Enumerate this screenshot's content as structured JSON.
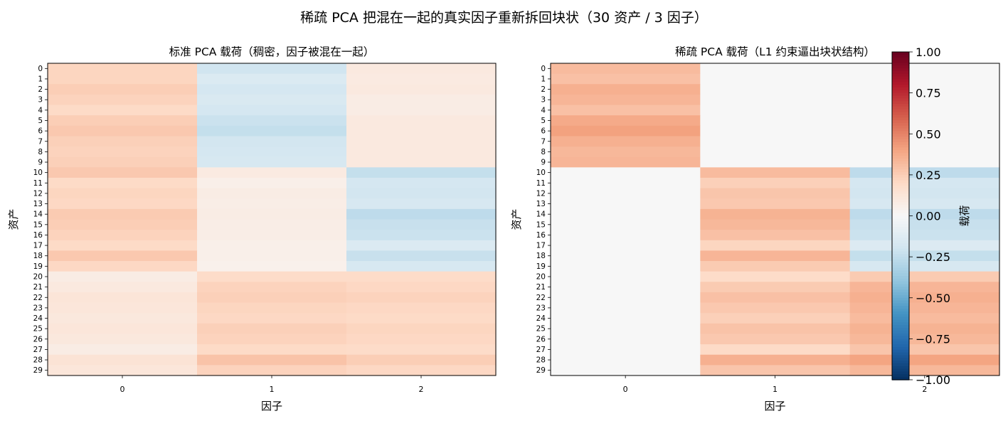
{
  "suptitle": "稀疏 PCA 把混在一起的真实因子重新拆回块状（30 资产 / 3 因子）",
  "colormap": {
    "name": "RdBu_r",
    "stops": [
      "#053061",
      "#2166ac",
      "#4393c3",
      "#92c5de",
      "#d1e5f0",
      "#f7f7f7",
      "#fddbc7",
      "#f4a582",
      "#d6604d",
      "#b2182b",
      "#67001f"
    ]
  },
  "chart_data": [
    {
      "type": "heatmap",
      "title": "标准 PCA 载荷（稠密，因子被混在一起）",
      "xlabel": "因子",
      "ylabel": "资产",
      "x_categories": [
        "0",
        "1",
        "2"
      ],
      "y_categories": [
        "0",
        "1",
        "2",
        "3",
        "4",
        "5",
        "6",
        "7",
        "8",
        "9",
        "10",
        "11",
        "12",
        "13",
        "14",
        "15",
        "16",
        "17",
        "18",
        "19",
        "20",
        "21",
        "22",
        "23",
        "24",
        "25",
        "26",
        "27",
        "28",
        "29"
      ],
      "vmin": -1,
      "vmax": 1,
      "values": [
        [
          0.22,
          -0.2,
          0.1
        ],
        [
          0.22,
          -0.15,
          0.09
        ],
        [
          0.25,
          -0.18,
          0.1
        ],
        [
          0.23,
          -0.16,
          0.08
        ],
        [
          0.2,
          -0.18,
          0.08
        ],
        [
          0.25,
          -0.22,
          0.1
        ],
        [
          0.27,
          -0.24,
          0.1
        ],
        [
          0.24,
          -0.19,
          0.1
        ],
        [
          0.23,
          -0.18,
          0.1
        ],
        [
          0.24,
          -0.17,
          0.1
        ],
        [
          0.27,
          0.09,
          -0.24
        ],
        [
          0.2,
          0.06,
          -0.18
        ],
        [
          0.22,
          0.08,
          -0.19
        ],
        [
          0.21,
          0.07,
          -0.17
        ],
        [
          0.26,
          0.08,
          -0.26
        ],
        [
          0.25,
          0.07,
          -0.23
        ],
        [
          0.23,
          0.07,
          -0.22
        ],
        [
          0.2,
          0.06,
          -0.15
        ],
        [
          0.27,
          0.06,
          -0.23
        ],
        [
          0.21,
          0.05,
          -0.17
        ],
        [
          0.08,
          0.19,
          0.19
        ],
        [
          0.1,
          0.23,
          0.21
        ],
        [
          0.13,
          0.24,
          0.23
        ],
        [
          0.12,
          0.22,
          0.21
        ],
        [
          0.11,
          0.21,
          0.2
        ],
        [
          0.12,
          0.24,
          0.22
        ],
        [
          0.11,
          0.23,
          0.21
        ],
        [
          0.08,
          0.2,
          0.19
        ],
        [
          0.14,
          0.29,
          0.25
        ],
        [
          0.12,
          0.23,
          0.21
        ]
      ]
    },
    {
      "type": "heatmap",
      "title": "稀疏 PCA 载荷（L1 约束逼出块状结构）",
      "xlabel": "因子",
      "ylabel": "资产",
      "x_categories": [
        "0",
        "1",
        "2"
      ],
      "y_categories": [
        "0",
        "1",
        "2",
        "3",
        "4",
        "5",
        "6",
        "7",
        "8",
        "9",
        "10",
        "11",
        "12",
        "13",
        "14",
        "15",
        "16",
        "17",
        "18",
        "19",
        "20",
        "21",
        "22",
        "23",
        "24",
        "25",
        "26",
        "27",
        "28",
        "29"
      ],
      "vmin": -1,
      "vmax": 1,
      "values": [
        [
          0.32,
          0.0,
          0.0
        ],
        [
          0.3,
          0.0,
          0.0
        ],
        [
          0.36,
          0.0,
          0.0
        ],
        [
          0.34,
          0.0,
          0.0
        ],
        [
          0.3,
          0.0,
          0.0
        ],
        [
          0.38,
          0.0,
          0.0
        ],
        [
          0.41,
          0.0,
          0.0
        ],
        [
          0.36,
          0.0,
          0.0
        ],
        [
          0.33,
          0.0,
          0.0
        ],
        [
          0.34,
          0.0,
          0.0
        ],
        [
          0.0,
          0.32,
          -0.26
        ],
        [
          0.0,
          0.24,
          -0.18
        ],
        [
          0.0,
          0.28,
          -0.19
        ],
        [
          0.0,
          0.27,
          -0.17
        ],
        [
          0.0,
          0.35,
          -0.26
        ],
        [
          0.0,
          0.33,
          -0.23
        ],
        [
          0.0,
          0.3,
          -0.22
        ],
        [
          0.0,
          0.22,
          -0.14
        ],
        [
          0.0,
          0.34,
          -0.24
        ],
        [
          0.0,
          0.26,
          -0.17
        ],
        [
          0.0,
          0.19,
          0.26
        ],
        [
          0.0,
          0.26,
          0.34
        ],
        [
          0.0,
          0.3,
          0.36
        ],
        [
          0.0,
          0.27,
          0.34
        ],
        [
          0.0,
          0.24,
          0.32
        ],
        [
          0.0,
          0.29,
          0.35
        ],
        [
          0.0,
          0.27,
          0.33
        ],
        [
          0.0,
          0.2,
          0.28
        ],
        [
          0.0,
          0.36,
          0.4
        ],
        [
          0.0,
          0.28,
          0.33
        ]
      ],
      "colorbar": {
        "label": "载荷",
        "ticks": [
          1.0,
          0.75,
          0.5,
          0.25,
          0.0,
          -0.25,
          -0.5,
          -0.75,
          -1.0
        ],
        "tick_labels": [
          "1.00",
          "0.75",
          "0.50",
          "0.25",
          "0.00",
          "−0.25",
          "−0.50",
          "−0.75",
          "−1.00"
        ]
      }
    }
  ]
}
